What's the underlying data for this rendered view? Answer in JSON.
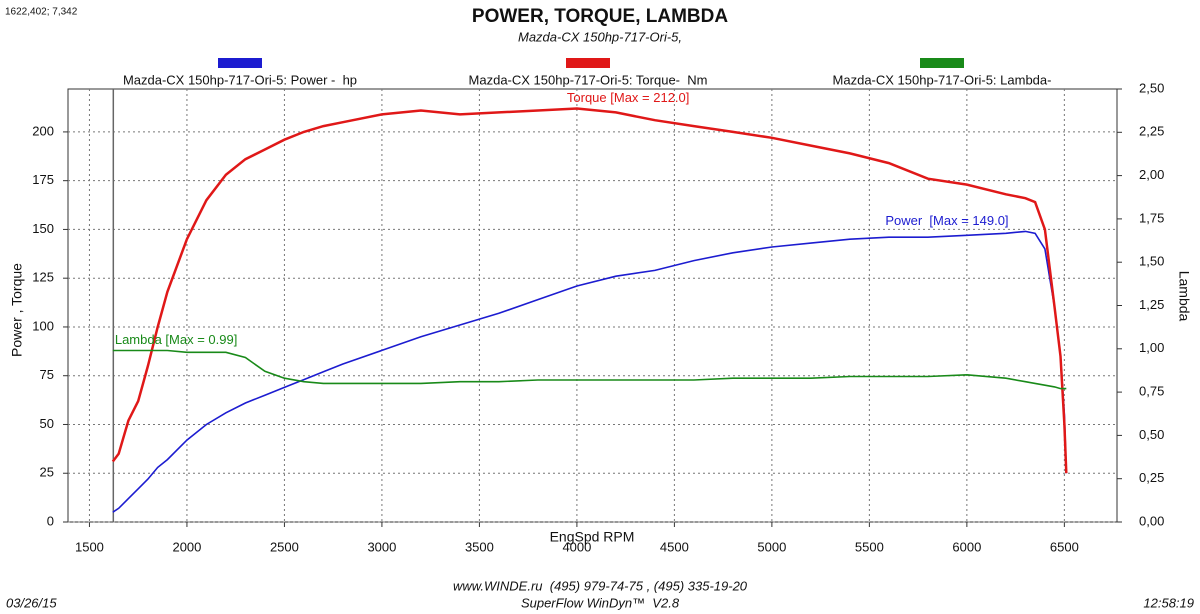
{
  "chart_data": {
    "type": "line",
    "title": "POWER, TORQUE, LAMBDA",
    "subtitle": "Mazda-CX 150hp-717-Ori-5,",
    "cursor": {
      "value": 1622.402,
      "label": "1622,402; 7,342"
    },
    "x_label": "EngSpd RPM",
    "y_label": "Power , Torque",
    "y2_label": "Lambda",
    "x": [
      1620,
      1650,
      1700,
      1750,
      1800,
      1850,
      1900,
      2000,
      2100,
      2200,
      2300,
      2400,
      2500,
      2600,
      2700,
      2800,
      3000,
      3200,
      3400,
      3600,
      3800,
      4000,
      4200,
      4400,
      4600,
      4800,
      5000,
      5200,
      5400,
      5600,
      5800,
      6000,
      6200,
      6300,
      6350,
      6400,
      6450,
      6480,
      6500,
      6510
    ],
    "series": [
      {
        "name": "Mazda-CX 150hp-717-Ori-5: Power -  hp",
        "color": "#1c1cd0",
        "annotation": "Power  [Max = 149.0]",
        "values": [
          5,
          7,
          12,
          17,
          22,
          28,
          32,
          42,
          50,
          56,
          61,
          65,
          69,
          73,
          77,
          81,
          88,
          95,
          101,
          107,
          114,
          121,
          126,
          129,
          134,
          138,
          141,
          143,
          145,
          146,
          146,
          147,
          148,
          149,
          148,
          140,
          110,
          85,
          55,
          25
        ]
      },
      {
        "name": "Mazda-CX 150hp-717-Ori-5: Torque-  Nm",
        "color": "#e01818",
        "annotation": "Torque [Max = 212.0]",
        "values": [
          31,
          35,
          52,
          62,
          80,
          100,
          118,
          145,
          165,
          178,
          186,
          191,
          196,
          200,
          203,
          205,
          209,
          211,
          209,
          210,
          211,
          212,
          210,
          206,
          203,
          200,
          197,
          193,
          189,
          184,
          176,
          173,
          168,
          166,
          164,
          150,
          110,
          85,
          50,
          25
        ]
      },
      {
        "name": "Mazda-CX 150hp-717-Ori-5: Lambda-",
        "color": "#198a19",
        "axis": "y2",
        "annotation": "Lambda [Max = 0.99]",
        "values": [
          0.99,
          0.99,
          0.99,
          0.99,
          0.99,
          0.99,
          0.99,
          0.98,
          0.98,
          0.98,
          0.95,
          0.87,
          0.83,
          0.81,
          0.8,
          0.8,
          0.8,
          0.8,
          0.81,
          0.81,
          0.82,
          0.82,
          0.82,
          0.82,
          0.82,
          0.83,
          0.83,
          0.83,
          0.84,
          0.84,
          0.84,
          0.85,
          0.83,
          0.81,
          0.8,
          0.79,
          0.78,
          0.77,
          0.77,
          0.77
        ]
      }
    ],
    "xlim": [
      1390,
      6770
    ],
    "xticks": [
      1500,
      2000,
      2500,
      3000,
      3500,
      4000,
      4500,
      5000,
      5500,
      6000,
      6500
    ],
    "ylim": [
      0,
      222
    ],
    "yticks": [
      0,
      25,
      50,
      75,
      100,
      125,
      150,
      175,
      200
    ],
    "y2lim": [
      0,
      2.5
    ],
    "y2ticks": [
      {
        "value": 0,
        "label": "0,00"
      },
      {
        "value": 0.25,
        "label": "0,25"
      },
      {
        "value": 0.5,
        "label": "0,50"
      },
      {
        "value": 0.75,
        "label": "0,75"
      },
      {
        "value": 1,
        "label": "1,00"
      },
      {
        "value": 1.25,
        "label": "1,25"
      },
      {
        "value": 1.5,
        "label": "1,50"
      },
      {
        "value": 1.75,
        "label": "1,75"
      },
      {
        "value": 2,
        "label": "2,00"
      },
      {
        "value": 2.25,
        "label": "2,25"
      },
      {
        "value": 2.5,
        "label": "2,50"
      }
    ],
    "grid": true,
    "footer": {
      "date": "03/26/15",
      "contact": "www.WINDE.ru  (495) 979-74-75 , (495) 335-19-20",
      "software": "SuperFlow WinDyn™  V2.8",
      "time": "12:58:19"
    }
  }
}
